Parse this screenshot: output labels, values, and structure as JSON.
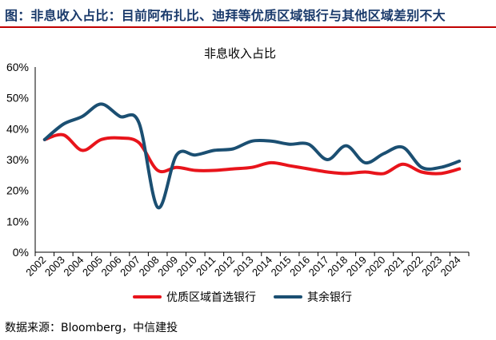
{
  "header": {
    "title": "图：非息收入占比：目前阿布扎比、迪拜等优质区域银行与其他区域差别不大"
  },
  "source": "数据来源：Bloomberg，中信建投",
  "colors": {
    "accent_rule": "#c00000",
    "header_text": "#1a3a6b"
  },
  "chart_data": {
    "type": "line",
    "title": "非息收入占比",
    "xlabel": "",
    "ylabel": "",
    "ylim": [
      0,
      60
    ],
    "yticks": [
      "0%",
      "10%",
      "20%",
      "30%",
      "40%",
      "50%",
      "60%"
    ],
    "grid": false,
    "legend_position": "bottom",
    "x": [
      "2002",
      "2003",
      "2004",
      "2005",
      "2006",
      "2007",
      "2008",
      "2009",
      "2010",
      "2011",
      "2012",
      "2013",
      "2014",
      "2015",
      "2016",
      "2017",
      "2018",
      "2019",
      "2020",
      "2021",
      "2022",
      "2023",
      "2024"
    ],
    "series": [
      {
        "name": "优质区域首选银行",
        "color": "#e8141b",
        "values": [
          36.5,
          38,
          33,
          36.5,
          37,
          35.5,
          26.5,
          27.5,
          26.5,
          26.5,
          27,
          27.5,
          29,
          28,
          27,
          26,
          25.5,
          26,
          25.5,
          28.5,
          26,
          25.5,
          27
        ]
      },
      {
        "name": "其余银行",
        "color": "#1b4f72",
        "values": [
          36.5,
          41.5,
          44,
          48,
          44,
          42,
          14.5,
          31.5,
          31.5,
          33,
          33.5,
          36,
          36,
          35,
          35,
          30,
          34.5,
          29,
          32,
          34,
          27.5,
          27.5,
          29.5
        ]
      }
    ]
  }
}
